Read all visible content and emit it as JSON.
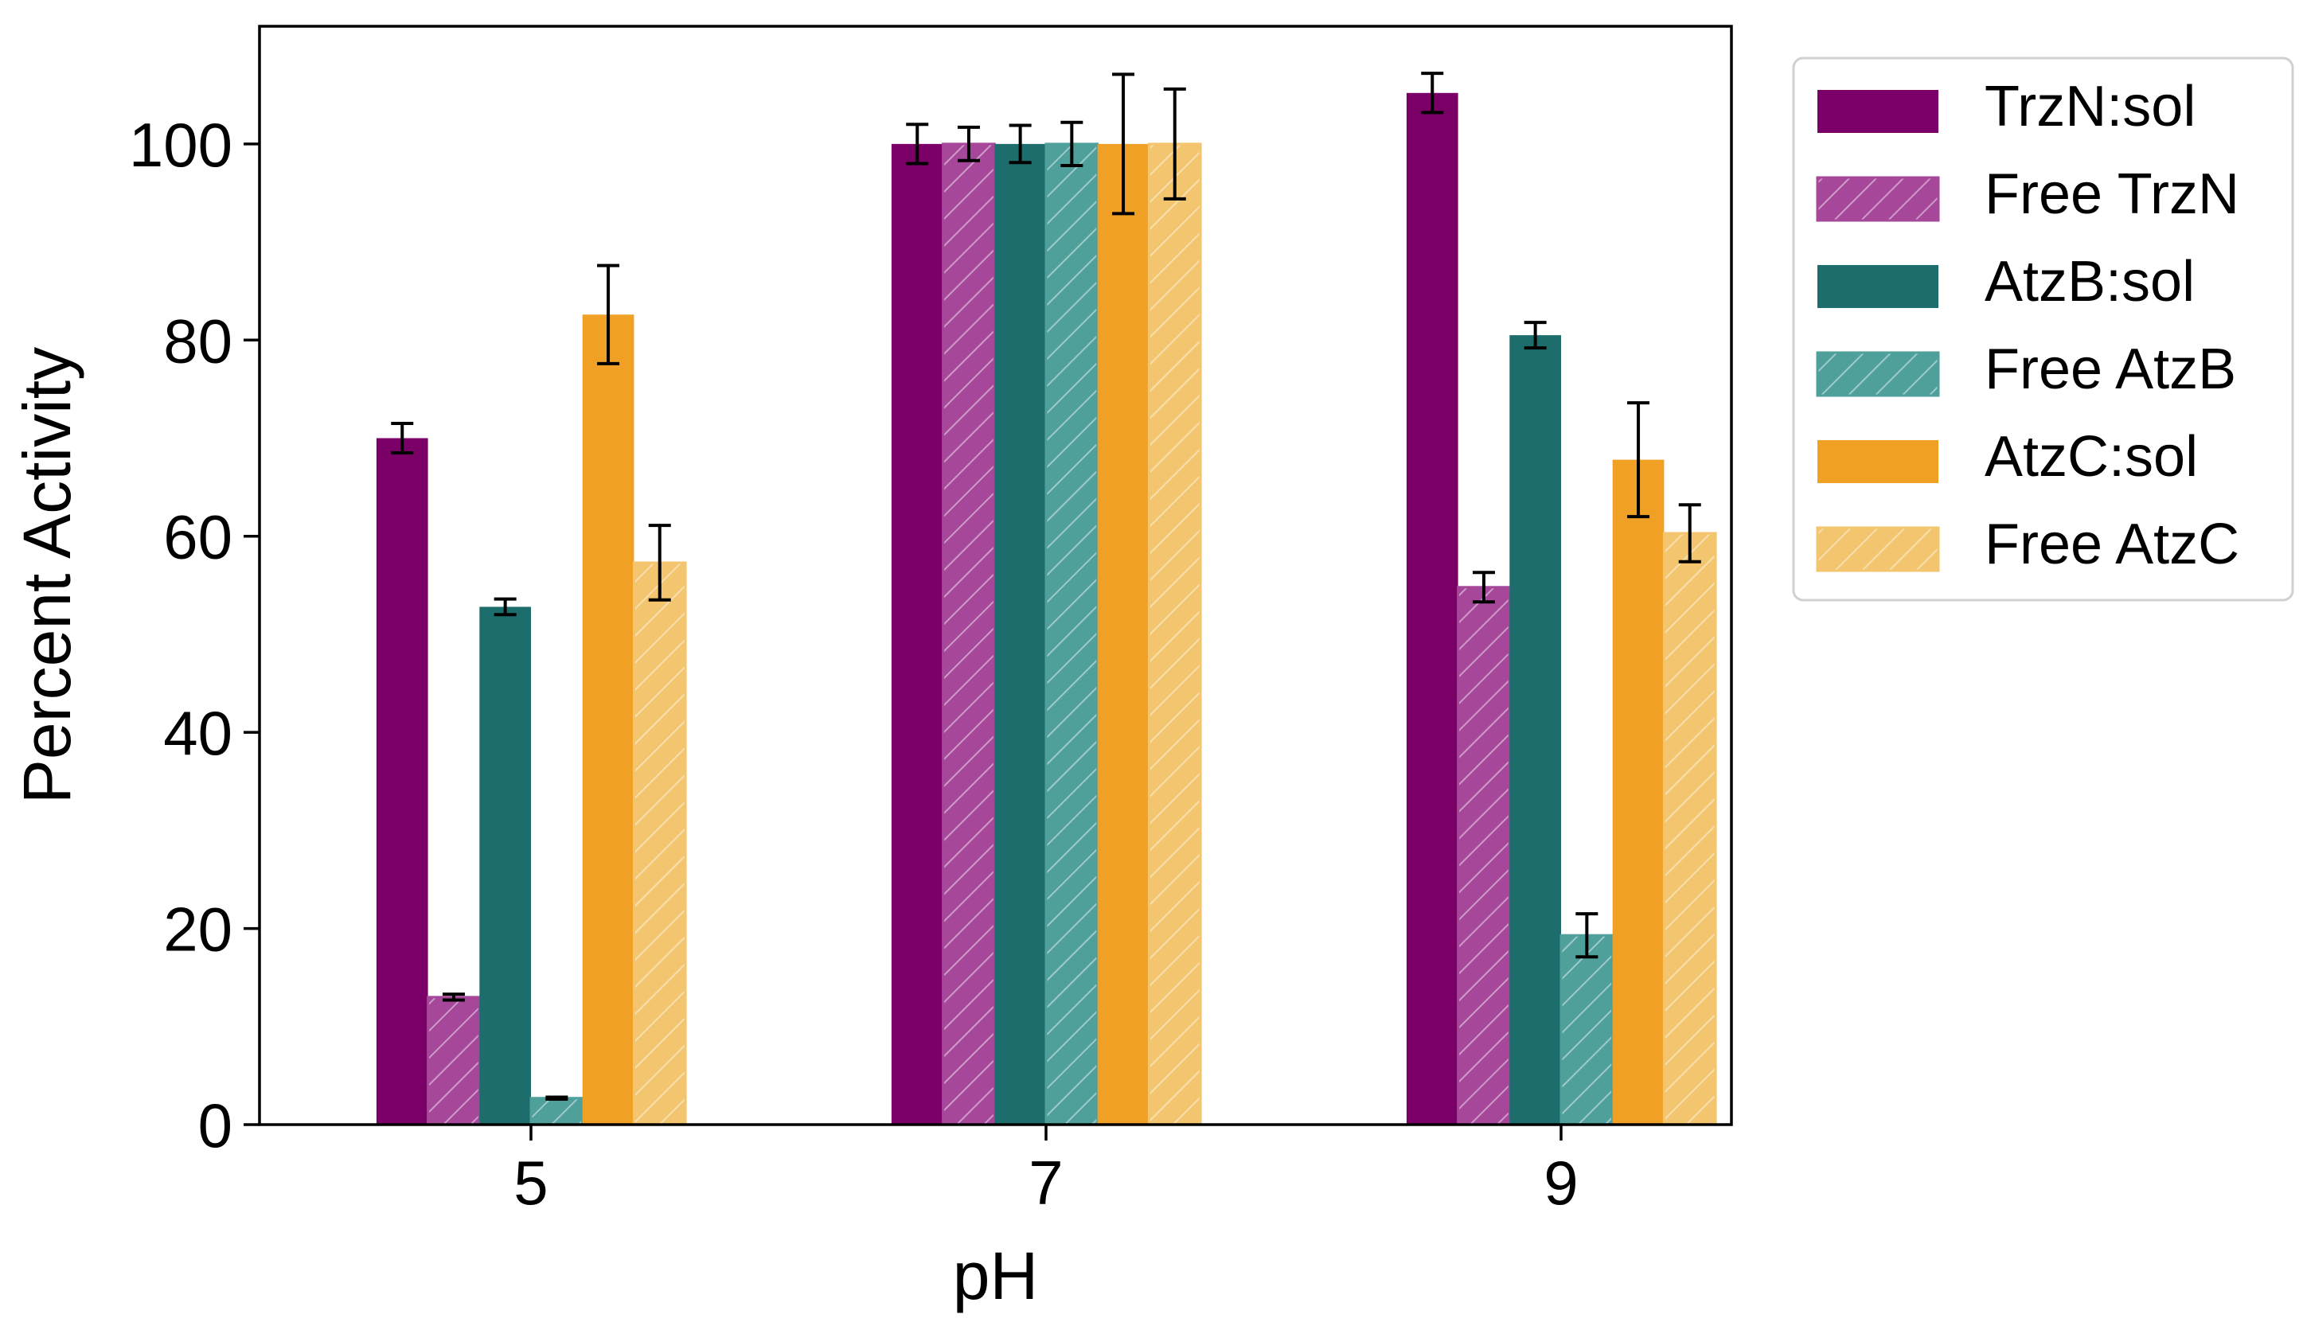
{
  "chart_data": {
    "type": "bar",
    "title": "",
    "xlabel": "pH",
    "ylabel": "Percent Activity",
    "categories": [
      "5",
      "7",
      "9"
    ],
    "ylim": [
      0,
      112
    ],
    "yticks": [
      "0",
      "20",
      "40",
      "60",
      "80",
      "100"
    ],
    "grid": false,
    "legend_position": "outside-right-top",
    "series": [
      {
        "name": "TrzN:sol",
        "color": "#7a0068",
        "hatch": false,
        "values": [
          70,
          100,
          105.2
        ],
        "errors": [
          1.5,
          2.0,
          2.0
        ]
      },
      {
        "name": "Free TrzN",
        "color": "#a6479a",
        "hatch": true,
        "values": [
          13,
          100,
          54.8
        ],
        "errors": [
          0.3,
          1.7,
          1.5
        ]
      },
      {
        "name": "AtzB:sol",
        "color": "#1e6d6d",
        "hatch": false,
        "values": [
          52.8,
          100,
          80.5
        ],
        "errors": [
          0.8,
          1.9,
          1.3
        ]
      },
      {
        "name": "Free AtzB",
        "color": "#4f9f9b",
        "hatch": true,
        "values": [
          2.7,
          100,
          19.3
        ],
        "errors": [
          0.1,
          2.2,
          2.2
        ]
      },
      {
        "name": "AtzC:sol",
        "color": "#f0a024",
        "hatch": false,
        "values": [
          82.6,
          100,
          67.8
        ],
        "errors": [
          5.0,
          7.1,
          5.8
        ]
      },
      {
        "name": "Free AtzC",
        "color": "#f3c56e",
        "hatch": true,
        "values": [
          57.3,
          100,
          60.3
        ],
        "errors": [
          3.8,
          5.6,
          2.9
        ]
      }
    ]
  }
}
